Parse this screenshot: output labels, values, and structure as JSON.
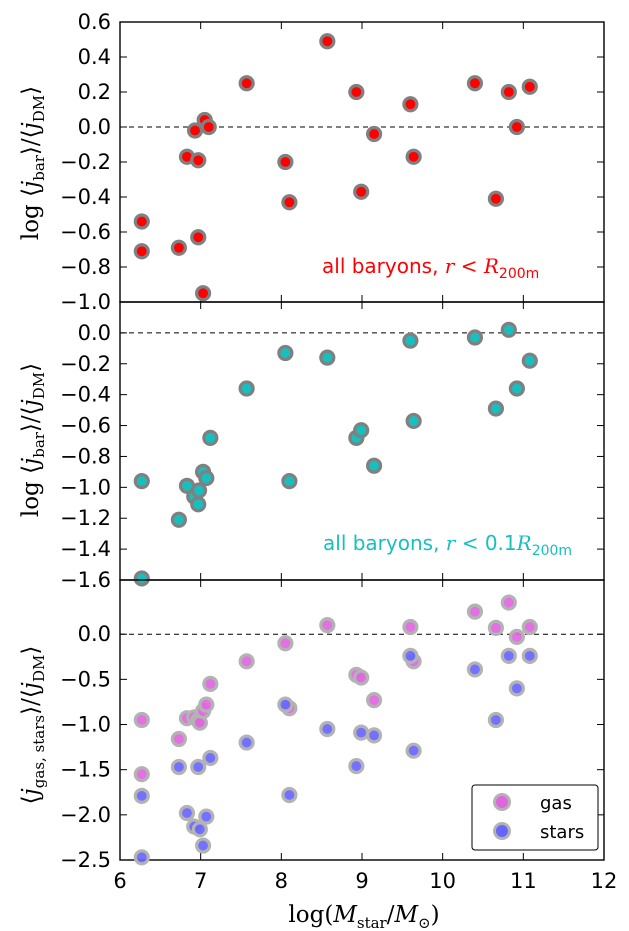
{
  "figure": {
    "xlabel": "log(M_star/M_⊙)"
  },
  "chart_data": [
    {
      "type": "scatter",
      "ylabel": "log ⟨j_bar⟩/⟨j_DM⟩",
      "annotation": "all baryons, r < R_200m",
      "annotation_color": "#ff0000",
      "xlim": [
        6,
        12
      ],
      "ylim": [
        -1.0,
        0.6
      ],
      "yticks": [
        "0.6",
        "0.4",
        "0.2",
        "0.0",
        "−0.2",
        "−0.4",
        "−0.6",
        "−0.8",
        "−1.0"
      ],
      "ytick_values": [
        0.6,
        0.4,
        0.2,
        0.0,
        -0.2,
        -0.4,
        -0.6,
        -0.8,
        -1.0
      ],
      "reference_line": 0.0,
      "series": [
        {
          "color": "#ff0000",
          "edge": "#808080",
          "points": [
            [
              6.27,
              -0.54
            ],
            [
              6.27,
              -0.71
            ],
            [
              6.73,
              -0.69
            ],
            [
              6.83,
              -0.17
            ],
            [
              6.93,
              -0.02
            ],
            [
              6.97,
              -0.19
            ],
            [
              6.97,
              -0.63
            ],
            [
              7.03,
              -0.95
            ],
            [
              7.05,
              0.04
            ],
            [
              7.1,
              0.0
            ],
            [
              7.57,
              0.25
            ],
            [
              8.05,
              -0.2
            ],
            [
              8.1,
              -0.43
            ],
            [
              8.57,
              0.49
            ],
            [
              8.93,
              0.2
            ],
            [
              8.99,
              -0.37
            ],
            [
              9.15,
              -0.04
            ],
            [
              9.6,
              0.13
            ],
            [
              9.64,
              -0.17
            ],
            [
              10.4,
              0.25
            ],
            [
              10.66,
              -0.41
            ],
            [
              10.82,
              0.2
            ],
            [
              10.92,
              0.0
            ],
            [
              11.08,
              0.23
            ]
          ]
        }
      ]
    },
    {
      "type": "scatter",
      "ylabel": "log ⟨j_bar⟩/⟨j_DM⟩",
      "annotation": "all baryons, r < 0.1R_200m",
      "annotation_color": "#17bfbf",
      "xlim": [
        6,
        12
      ],
      "ylim": [
        -1.6,
        0.2
      ],
      "yticks": [
        "0.0",
        "−0.2",
        "−0.4",
        "−0.6",
        "−0.8",
        "−1.0",
        "−1.2",
        "−1.4",
        "−1.6"
      ],
      "ytick_values": [
        0.0,
        -0.2,
        -0.4,
        -0.6,
        -0.8,
        -1.0,
        -1.2,
        -1.4,
        -1.6
      ],
      "reference_line": 0.0,
      "series": [
        {
          "color": "#17bfbf",
          "edge": "#808080",
          "points": [
            [
              6.27,
              -0.96
            ],
            [
              6.27,
              -1.59
            ],
            [
              6.73,
              -1.21
            ],
            [
              6.83,
              -0.99
            ],
            [
              6.92,
              -1.06
            ],
            [
              6.97,
              -1.11
            ],
            [
              6.98,
              -1.02
            ],
            [
              7.03,
              -0.9
            ],
            [
              7.07,
              -0.94
            ],
            [
              7.12,
              -0.68
            ],
            [
              7.57,
              -0.36
            ],
            [
              8.05,
              -0.13
            ],
            [
              8.1,
              -0.96
            ],
            [
              8.57,
              -0.16
            ],
            [
              8.93,
              -0.68
            ],
            [
              8.99,
              -0.63
            ],
            [
              9.15,
              -0.86
            ],
            [
              9.6,
              -0.05
            ],
            [
              9.64,
              -0.57
            ],
            [
              10.4,
              -0.03
            ],
            [
              10.66,
              -0.49
            ],
            [
              10.82,
              0.02
            ],
            [
              10.92,
              -0.36
            ],
            [
              11.08,
              -0.18
            ]
          ]
        }
      ]
    },
    {
      "type": "scatter",
      "ylabel": "⟨j_gas,stars⟩/⟨j_DM⟩",
      "xlim": [
        6,
        12
      ],
      "ylim": [
        -2.5,
        0.6
      ],
      "yticks": [
        "0.0",
        "−0.5",
        "−1.0",
        "−1.5",
        "−2.0",
        "−2.5"
      ],
      "ytick_values": [
        0.0,
        -0.5,
        -1.0,
        -1.5,
        -2.0,
        -2.5
      ],
      "reference_line": 0.0,
      "legend": "lower-right",
      "series": [
        {
          "name": "gas",
          "color": "#e066e0",
          "edge": "#b3b3b3",
          "points": [
            [
              6.27,
              -0.95
            ],
            [
              6.27,
              -1.55
            ],
            [
              6.73,
              -1.16
            ],
            [
              6.83,
              -0.93
            ],
            [
              6.92,
              -0.92
            ],
            [
              6.97,
              -0.95
            ],
            [
              6.99,
              -0.98
            ],
            [
              7.03,
              -0.85
            ],
            [
              7.07,
              -0.78
            ],
            [
              7.12,
              -0.55
            ],
            [
              7.57,
              -0.3
            ],
            [
              8.05,
              -0.1
            ],
            [
              8.1,
              -0.82
            ],
            [
              8.57,
              0.1
            ],
            [
              8.93,
              -0.45
            ],
            [
              8.99,
              -0.48
            ],
            [
              9.15,
              -0.73
            ],
            [
              9.6,
              0.08
            ],
            [
              9.64,
              -0.3
            ],
            [
              10.4,
              0.25
            ],
            [
              10.66,
              0.07
            ],
            [
              10.82,
              0.35
            ],
            [
              10.92,
              -0.03
            ],
            [
              11.08,
              0.08
            ]
          ]
        },
        {
          "name": "stars",
          "color": "#6666ff",
          "edge": "#b3b3b3",
          "points": [
            [
              6.27,
              -1.79
            ],
            [
              6.27,
              -2.47
            ],
            [
              6.73,
              -1.47
            ],
            [
              6.83,
              -1.98
            ],
            [
              6.92,
              -2.13
            ],
            [
              6.97,
              -1.47
            ],
            [
              6.99,
              -2.16
            ],
            [
              7.03,
              -2.34
            ],
            [
              7.07,
              -2.02
            ],
            [
              7.12,
              -1.37
            ],
            [
              7.57,
              -1.2
            ],
            [
              8.05,
              -0.78
            ],
            [
              8.1,
              -1.78
            ],
            [
              8.57,
              -1.05
            ],
            [
              8.93,
              -1.46
            ],
            [
              8.99,
              -1.09
            ],
            [
              9.15,
              -1.12
            ],
            [
              9.6,
              -0.24
            ],
            [
              9.64,
              -1.29
            ],
            [
              10.4,
              -0.39
            ],
            [
              10.66,
              -0.95
            ],
            [
              10.82,
              -0.24
            ],
            [
              10.92,
              -0.6
            ],
            [
              11.08,
              -0.24
            ]
          ]
        }
      ]
    }
  ],
  "xaxis": {
    "ticks": [
      "6",
      "7",
      "8",
      "9",
      "10",
      "11",
      "12"
    ],
    "tick_values": [
      6,
      7,
      8,
      9,
      10,
      11,
      12
    ]
  }
}
